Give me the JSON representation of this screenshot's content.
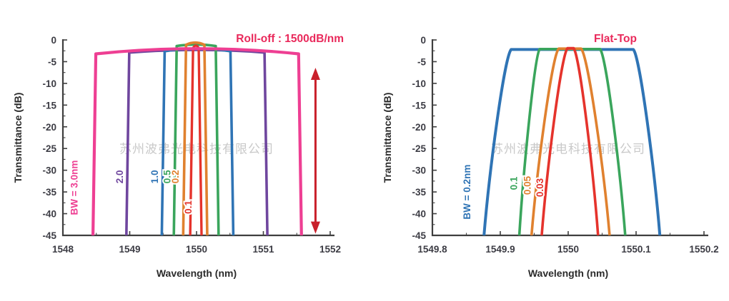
{
  "figure": {
    "background": "#ffffff",
    "watermark_text": "苏州波弗光电科技有限公司",
    "watermark_color": "#c9c9c9",
    "axis_color": "#3f3f3f",
    "tick_label_color": "#3c3c44",
    "axis_title_color": "#2b2b2b"
  },
  "chart_data": [
    {
      "type": "line",
      "id": "rolloff",
      "title": "Roll-off : 1500dB/nm",
      "title_color": "#e9295b",
      "xlabel": "Wavelength (nm)",
      "ylabel": "Transmittance (dB)",
      "xlim": [
        1548,
        1552
      ],
      "ylim": [
        -45,
        0
      ],
      "xticks": [
        1548,
        1549,
        1550,
        1551,
        1552
      ],
      "xtick_labels": [
        "1548",
        "1549",
        "1550",
        "1551",
        "1552"
      ],
      "yticks": [
        0,
        -5,
        -10,
        -15,
        -20,
        -25,
        -30,
        -35,
        -40,
        -45
      ],
      "ytick_labels": [
        "0",
        "-5",
        "-10",
        "-15",
        "-20",
        "-25",
        "-30",
        "-35",
        "-40",
        "-45"
      ],
      "x_minor_step": 0.5,
      "y_minor_step": 2.5,
      "grid": false,
      "watermark": "苏州波弗光电科技有限公司",
      "annotation_arrow": {
        "x": 1551.78,
        "y_top": -6.4,
        "y_bottom": -44.6,
        "color": "#c9202b"
      },
      "series": [
        {
          "name": "BW = 3.0nm",
          "bw_nm": 3.0,
          "color": "#ee3f93",
          "shape": "flat_trapezoid",
          "z": 6,
          "stroke": 4.2,
          "edges_at_minus45dB": [
            1548.45,
            1551.57
          ],
          "top_corner_db": -3.2,
          "top_peak_db": -2.0,
          "label": {
            "text": "BW = 3.0nm",
            "x": 1548.22,
            "y": -34,
            "rotate": -90
          }
        },
        {
          "name": "2.0",
          "bw_nm": 2.0,
          "color": "#6f469e",
          "shape": "flat_trapezoid",
          "z": 1,
          "stroke": 3.6,
          "edges_at_minus45dB": [
            1548.95,
            1551.06
          ],
          "top_corner_db": -2.9,
          "top_peak_db": -2.3,
          "label": {
            "text": "2.0",
            "x": 1548.9,
            "y": -31.5,
            "rotate": -90
          }
        },
        {
          "name": "1.0",
          "bw_nm": 1.0,
          "color": "#2f74b5",
          "shape": "flat_trapezoid",
          "z": 2,
          "stroke": 3.6,
          "edges_at_minus45dB": [
            1549.48,
            1550.55
          ],
          "top_corner_db": -2.6,
          "top_peak_db": -2.0,
          "label": {
            "text": "1.0",
            "x": 1549.42,
            "y": -31.5,
            "rotate": -90
          }
        },
        {
          "name": "0.5",
          "bw_nm": 0.5,
          "color": "#3aa55c",
          "shape": "flat_trapezoid",
          "z": 3,
          "stroke": 3.6,
          "edges_at_minus45dB": [
            1549.66,
            1550.33
          ],
          "top_corner_db": -1.4,
          "top_peak_db": -1.05,
          "label": {
            "text": "0.5",
            "x": 1549.61,
            "y": -31.5,
            "rotate": -90
          }
        },
        {
          "name": "0.2",
          "bw_nm": 0.2,
          "color": "#e0812f",
          "shape": "flat_trapezoid",
          "z": 5,
          "stroke": 3.6,
          "edges_at_minus45dB": [
            1549.8,
            1550.16
          ],
          "top_corner_db": -1.1,
          "top_peak_db": -0.6,
          "label": {
            "text": "0.2",
            "x": 1549.73,
            "y": -31.5,
            "rotate": -90
          }
        },
        {
          "name": "0.1",
          "bw_nm": 0.1,
          "color": "#e5332c",
          "shape": "flat_trapezoid",
          "z": 4,
          "stroke": 3.4,
          "edges_at_minus45dB": [
            1549.905,
            1550.075
          ],
          "top_corner_db": -1.9,
          "top_peak_db": -1.3,
          "label": {
            "text": "0.1",
            "x": 1549.925,
            "y": -38.5,
            "rotate": -90
          }
        }
      ]
    },
    {
      "type": "line",
      "id": "flattop",
      "title": "Flat-Top",
      "title_color": "#e9295b",
      "xlabel": "Wavelength (nm)",
      "ylabel": "Transmittance (dB)",
      "xlim": [
        1549.8,
        1550.2
      ],
      "ylim": [
        -45,
        0
      ],
      "xticks": [
        1549.8,
        1549.9,
        1550,
        1550.1,
        1550.2
      ],
      "xtick_labels": [
        "1549.8",
        "1549.9",
        "1550",
        "1550.1",
        "1550.2"
      ],
      "yticks": [
        0,
        -5,
        -10,
        -15,
        -20,
        -25,
        -30,
        -35,
        -40,
        -45
      ],
      "ytick_labels": [
        "0",
        "-5",
        "-10",
        "-15",
        "-20",
        "-25",
        "-30",
        "-35",
        "-40",
        "-45"
      ],
      "x_minor_step": 0.05,
      "y_minor_step": 2.5,
      "grid": false,
      "watermark": "苏州波弗光电科技有限公司",
      "series": [
        {
          "name": "BW = 0.2nm",
          "bw_nm": 0.2,
          "color": "#2f74b5",
          "shape": "flat_sigmoid",
          "z": 1,
          "stroke": 4.0,
          "edges_at_minus45dB": [
            1549.876,
            1550.135
          ],
          "flat_top_edges": [
            1549.916,
            1550.096
          ],
          "top_db": -2.2,
          "label": {
            "text": "BW = 0.2nm",
            "x": 1549.856,
            "y": -35,
            "rotate": -90
          }
        },
        {
          "name": "0.1",
          "bw_nm": 0.1,
          "color": "#3aa55c",
          "shape": "flat_sigmoid",
          "z": 2,
          "stroke": 3.6,
          "edges_at_minus45dB": [
            1549.928,
            1550.084
          ],
          "flat_top_edges": [
            1549.958,
            1550.047
          ],
          "top_db": -2.1,
          "label": {
            "text": "0.1",
            "x": 1549.925,
            "y": -33,
            "rotate": -90
          }
        },
        {
          "name": "0.05",
          "bw_nm": 0.05,
          "color": "#e0812f",
          "shape": "flat_sigmoid",
          "z": 3,
          "stroke": 3.6,
          "edges_at_minus45dB": [
            1549.946,
            1550.061
          ],
          "flat_top_edges": [
            1549.986,
            1550.019
          ],
          "top_db": -2.0,
          "label": {
            "text": "0.05",
            "x": 1549.945,
            "y": -33.5,
            "rotate": -90
          }
        },
        {
          "name": "0.03",
          "bw_nm": 0.03,
          "color": "#e5332c",
          "shape": "flat_sigmoid",
          "z": 4,
          "stroke": 3.6,
          "edges_at_minus45dB": [
            1549.961,
            1550.044
          ],
          "flat_top_edges": [
            1549.999,
            1550.008
          ],
          "top_db": -1.9,
          "label": {
            "text": "0.03",
            "x": 1549.963,
            "y": -34,
            "rotate": -90
          }
        }
      ]
    }
  ]
}
